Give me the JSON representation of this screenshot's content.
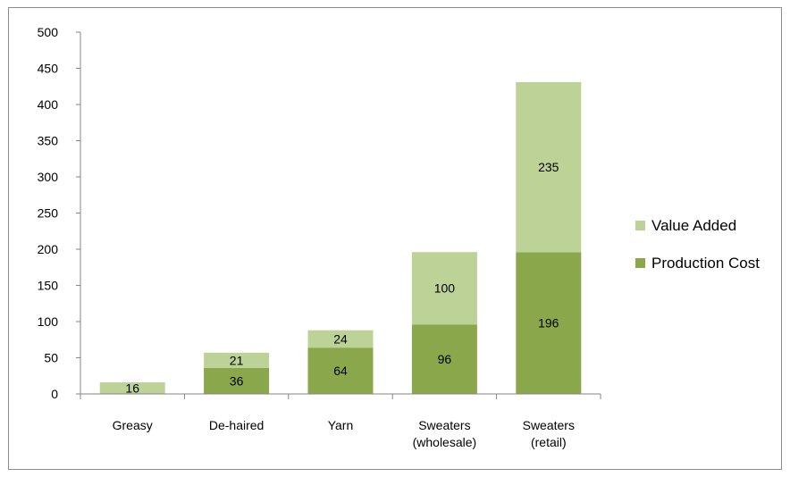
{
  "chart_data": {
    "type": "bar",
    "stacked": true,
    "title": "",
    "xlabel": "",
    "ylabel": "",
    "categories": [
      "Greasy",
      "De-haired",
      "Yarn",
      "Sweaters (wholesale)",
      "Sweaters (retail)"
    ],
    "category_lines": [
      [
        "Greasy"
      ],
      [
        "De-haired"
      ],
      [
        "Yarn"
      ],
      [
        "Sweaters",
        "(wholesale)"
      ],
      [
        "Sweaters",
        "(retail)"
      ]
    ],
    "series": [
      {
        "name": "Production Cost",
        "values": [
          0,
          36,
          64,
          96,
          196
        ],
        "labels": [
          "",
          "36",
          "64",
          "96",
          "196"
        ],
        "color": "#8aa84b"
      },
      {
        "name": "Value Added",
        "values": [
          16,
          21,
          24,
          100,
          235
        ],
        "labels": [
          "16",
          "21",
          "24",
          "100",
          "235"
        ],
        "color": "#bcd296"
      }
    ],
    "ylim": [
      0,
      500
    ],
    "yticks": [
      "0",
      "50",
      "100",
      "150",
      "200",
      "250",
      "300",
      "350",
      "400",
      "450",
      "500"
    ],
    "grid": false,
    "legend_position": "right",
    "legend_order": [
      "Value Added",
      "Production Cost"
    ]
  }
}
